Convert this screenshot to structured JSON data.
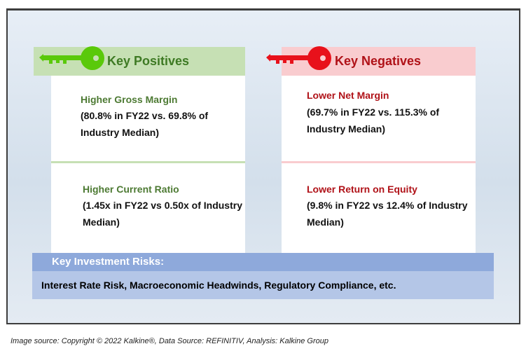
{
  "positives": {
    "title": "Key Positives",
    "items": [
      {
        "heading": "Higher Gross Margin",
        "detail": "(80.8% in FY22 vs. 69.8% of Industry Median)"
      },
      {
        "heading": "Higher Current Ratio",
        "detail": "(1.45x in FY22 vs 0.50x of Industry Median)"
      }
    ],
    "accent": "#3e7a24",
    "key_color": "#5ac90a"
  },
  "negatives": {
    "title": "Key Negatives",
    "items": [
      {
        "heading": "Lower Net Margin",
        "detail": "(69.7% in FY22 vs. 115.3% of Industry Median)"
      },
      {
        "heading": "Lower Return on Equity",
        "detail": "(9.8% in FY22 vs 12.4% of Industry Median)"
      }
    ],
    "accent": "#b01218",
    "key_color": "#e8111b"
  },
  "risks": {
    "title": "Key Investment Risks:",
    "text": "Interest Rate Risk, Macroeconomic Headwinds, Regulatory Compliance, etc."
  },
  "footer": {
    "source": "Image source: Copyright © 2022 Kalkine®, Data Source: REFINITIV, Analysis: Kalkine Group"
  },
  "icons": [
    "green-key-icon",
    "red-key-icon"
  ]
}
